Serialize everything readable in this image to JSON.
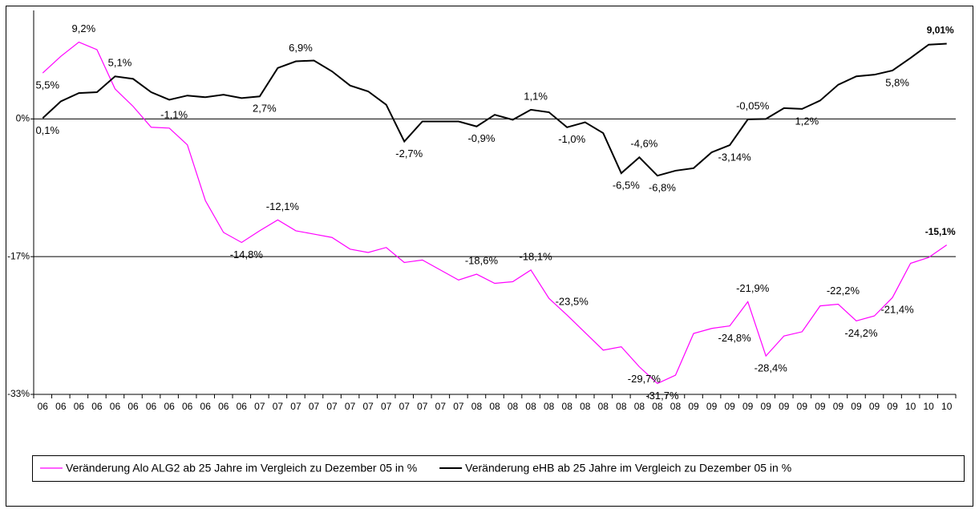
{
  "chart_data": {
    "type": "line",
    "categories": [
      "06",
      "06",
      "06",
      "06",
      "06",
      "06",
      "06",
      "06",
      "06",
      "06",
      "06",
      "06",
      "07",
      "07",
      "07",
      "07",
      "07",
      "07",
      "07",
      "07",
      "07",
      "07",
      "07",
      "07",
      "08",
      "08",
      "08",
      "08",
      "08",
      "08",
      "08",
      "08",
      "08",
      "08",
      "08",
      "08",
      "09",
      "09",
      "09",
      "09",
      "09",
      "09",
      "09",
      "09",
      "09",
      "09",
      "09",
      "09",
      "10",
      "10",
      "10"
    ],
    "series": [
      {
        "name": "Veränderung Alo ALG2 ab 25 Jahre im Vergleich zu Dezember 05 in %",
        "color": "#ff00ff",
        "values": [
          5.5,
          7.5,
          9.2,
          8.3,
          3.6,
          1.5,
          -1.0,
          -1.1,
          -3.1,
          -9.8,
          -13.6,
          -14.8,
          -13.4,
          -12.1,
          -13.4,
          -13.8,
          -14.2,
          -15.6,
          -16.0,
          -15.4,
          -17.2,
          -16.9,
          -18.1,
          -19.3,
          -18.6,
          -19.7,
          -19.5,
          -18.1,
          -21.5,
          -23.5,
          -25.6,
          -27.7,
          -27.3,
          -29.7,
          -31.7,
          -30.7,
          -25.7,
          -25.1,
          -24.8,
          -21.9,
          -28.4,
          -26.0,
          -25.5,
          -22.4,
          -22.2,
          -24.2,
          -23.6,
          -21.4,
          -17.3,
          -16.6,
          -15.1
        ],
        "value_labels": [
          "5,5%",
          null,
          "9,2%",
          null,
          null,
          null,
          null,
          "-1,1%",
          null,
          null,
          null,
          "-14,8%",
          null,
          "-12,1%",
          null,
          null,
          null,
          null,
          null,
          null,
          null,
          null,
          null,
          null,
          "-18,6%",
          null,
          null,
          "-18,1%",
          null,
          "-23,5%",
          null,
          null,
          null,
          "-29,7%",
          "-31,7%",
          null,
          null,
          null,
          "-24,8%",
          "-21,9%",
          "-28,4%",
          null,
          null,
          null,
          "-22,2%",
          "-24,2%",
          null,
          "-21,4%",
          null,
          null,
          "-15,1%"
        ]
      },
      {
        "name": "Veränderung eHB ab 25 Jahre im Vergleich zu Dezember 05 in %",
        "color": "#000000",
        "values": [
          0.1,
          2.1,
          3.1,
          3.2,
          5.1,
          4.8,
          3.2,
          2.3,
          2.8,
          2.6,
          2.9,
          2.5,
          2.7,
          6.1,
          6.9,
          7.0,
          5.7,
          4.0,
          3.3,
          1.7,
          -2.7,
          -0.3,
          -0.3,
          -0.3,
          -0.9,
          0.5,
          -0.1,
          1.1,
          0.8,
          -1.0,
          -0.4,
          -1.7,
          -6.5,
          -4.6,
          -6.8,
          -6.2,
          -5.9,
          -4.0,
          -3.14,
          -0.05,
          0.0,
          1.3,
          1.2,
          2.2,
          4.1,
          5.1,
          5.3,
          5.8,
          7.3,
          8.9,
          9.01
        ],
        "value_labels": [
          "0,1%",
          null,
          null,
          null,
          "5,1%",
          null,
          null,
          null,
          null,
          null,
          null,
          null,
          "2,7%",
          null,
          "6,9%",
          null,
          null,
          null,
          null,
          null,
          "-2,7%",
          null,
          null,
          null,
          "-0,9%",
          null,
          null,
          "1,1%",
          null,
          "-1,0%",
          null,
          null,
          "-6,5%",
          "-4,6%",
          "-6,8%",
          null,
          null,
          null,
          "-3,14%",
          "-0,05%",
          null,
          null,
          "1,2%",
          null,
          null,
          null,
          null,
          "5,8%",
          null,
          null,
          "9,01%"
        ]
      }
    ],
    "ylim": [
      -33,
      13
    ],
    "yticks": [
      {
        "value": 0,
        "label": "0%"
      },
      {
        "value": -16.5,
        "label": "-17%"
      },
      {
        "value": -33,
        "label": "-33%"
      }
    ],
    "grid": true,
    "legend": "bottom"
  }
}
